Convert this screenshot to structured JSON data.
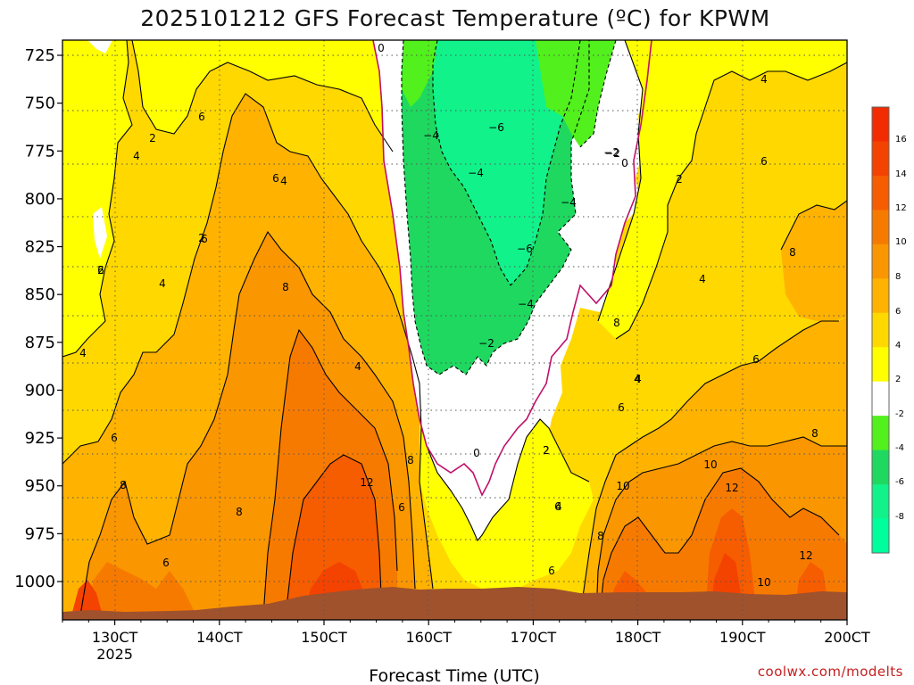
{
  "title": "2025101212 GFS Forecast Temperature (ºC) for KPWM",
  "credit": "coolwx.com/modelts",
  "chart_data": {
    "type": "heatmap",
    "title": "2025101212 GFS Forecast Temperature (ºC) for KPWM",
    "xlabel": "Forecast Time (UTC)",
    "ylabel": "",
    "x_ticks": [
      "130CT",
      "140CT",
      "150CT",
      "160CT",
      "170CT",
      "180CT",
      "190CT",
      "200CT"
    ],
    "x_year_label": "2025",
    "y_ticks": [
      725,
      750,
      775,
      800,
      825,
      850,
      875,
      900,
      925,
      950,
      975,
      1000
    ],
    "x_range_days": [
      12.5,
      20.0
    ],
    "y_range_hpa": [
      712,
      1020
    ],
    "grid": true,
    "colorbar": {
      "bins": [
        {
          "low": -10,
          "high": -8,
          "color": "#00ff9c"
        },
        {
          "low": -8,
          "high": -6,
          "color": "#11f28a"
        },
        {
          "low": -6,
          "high": -4,
          "color": "#1ed860"
        },
        {
          "low": -4,
          "high": -2,
          "color": "#52f01c"
        },
        {
          "low": -2,
          "high": 2,
          "color": "#ffffff"
        },
        {
          "low": 2,
          "high": 4,
          "color": "#ffff00"
        },
        {
          "low": 4,
          "high": 6,
          "color": "#ffd800"
        },
        {
          "low": 6,
          "high": 8,
          "color": "#ffb300"
        },
        {
          "low": 8,
          "high": 10,
          "color": "#fa9600"
        },
        {
          "low": 10,
          "high": 12,
          "color": "#f77a00"
        },
        {
          "low": 12,
          "high": 14,
          "color": "#f65c00"
        },
        {
          "low": 14,
          "high": 16,
          "color": "#f44200"
        },
        {
          "low": 16,
          "high": 18,
          "color": "#f22b00"
        }
      ],
      "labels": [
        "16",
        "14",
        "12",
        "10",
        "8",
        "6",
        "4",
        "2",
        "-2",
        "-4",
        "-6",
        "-8"
      ]
    },
    "contour_labels": [
      "0",
      "2",
      "4",
      "2",
      "6",
      "4",
      "6",
      "2",
      "4",
      "6",
      "6",
      "8",
      "4",
      "8",
      "6",
      "8",
      "12",
      "8",
      "6",
      "4",
      "6",
      "-4",
      "-6",
      "-4",
      "-2",
      "-6",
      "-4",
      "-2",
      "-4",
      "-2",
      "0",
      "2",
      "0",
      "2",
      "4",
      "6",
      "8",
      "10",
      "8",
      "10",
      "12",
      "4",
      "6",
      "8",
      "8",
      "6",
      "4",
      "12",
      "10",
      "2",
      "4",
      "6",
      "4",
      "6"
    ],
    "ground_color": "#a0522d"
  }
}
